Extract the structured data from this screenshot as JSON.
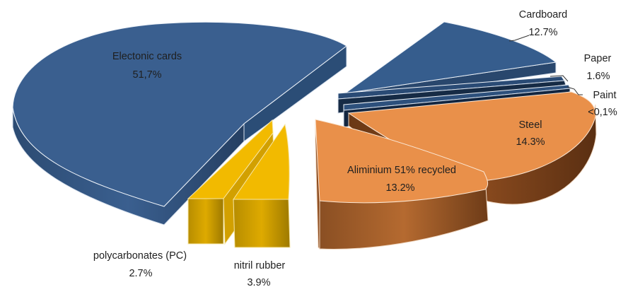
{
  "chart_data": {
    "type": "pie",
    "style": "3d-exploded",
    "slices": [
      {
        "label": "Electonic cards",
        "value_text": "51,7%",
        "value": 51.7,
        "color": "#3a5f8f"
      },
      {
        "label": "Cardboard",
        "value_text": "12.7%",
        "value": 12.7,
        "color": "#365d8d"
      },
      {
        "label": "Paper",
        "value_text": "1.6%",
        "value": 1.6,
        "color": "#203a5a"
      },
      {
        "label": "Paint",
        "value_text": "<0,1%",
        "value": 0.1,
        "color": "#1b3150"
      },
      {
        "label": "Steel",
        "value_text": "14.3%",
        "value": 14.3,
        "color": "#e9904a"
      },
      {
        "label": "Aliminium 51% recycled",
        "value_text": "13.2%",
        "value": 13.2,
        "color": "#e9904a"
      },
      {
        "label": "nitril rubber",
        "value_text": "3.9%",
        "value": 3.9,
        "color": "#f2ba00"
      },
      {
        "label": "polycarbonates (PC)",
        "value_text": "2.7%",
        "value": 2.7,
        "color": "#f2ba00"
      }
    ]
  }
}
